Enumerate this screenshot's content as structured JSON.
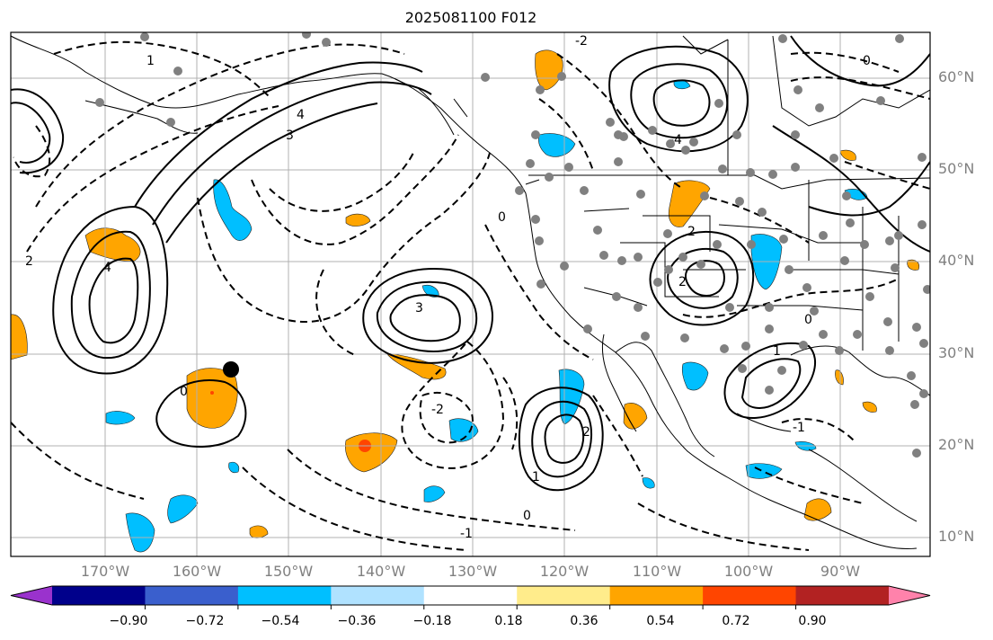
{
  "title": "2025081100 F012",
  "lat_labels": [
    "60°N",
    "50°N",
    "40°N",
    "30°N",
    "20°N",
    "10°N"
  ],
  "lon_labels": [
    "170°W",
    "160°W",
    "150°W",
    "140°W",
    "130°W",
    "120°W",
    "110°W",
    "100°W",
    "90°W"
  ],
  "colorbar": {
    "labels": [
      "−0.90",
      "−0.72",
      "−0.54",
      "−0.36",
      "−0.18",
      "0.18",
      "0.36",
      "0.54",
      "0.72",
      "0.90"
    ],
    "colors": [
      "#9a32cd",
      "#00008b",
      "#3a5fcd",
      "#00bfff",
      "#b0e2ff",
      "#ffffff",
      "#ffec8b",
      "#ffa500",
      "#ff4500",
      "#b22222",
      "#ff82ab"
    ]
  },
  "contour_labels": [
    "3",
    "4",
    "0",
    "-2",
    "1",
    "2",
    "-1",
    "3",
    "2",
    "0",
    "-2",
    "1",
    "0",
    "2",
    "-4",
    "-1",
    "0",
    "1",
    "2",
    "4",
    "0"
  ],
  "colors": {
    "grid": "#b0b0b0",
    "tick_text": "#808080",
    "positive_fill": "#ffa500",
    "negative_fill": "#00bfff",
    "station": "#808080"
  }
}
